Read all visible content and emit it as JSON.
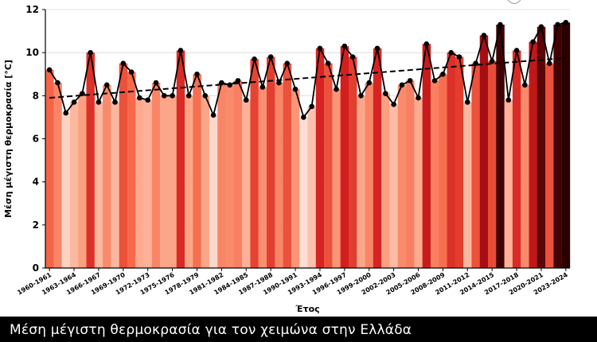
{
  "footer": {
    "title": "Μέση μέγιστη θερμοκρασία για τον χειμώνα στην Ελλάδα"
  },
  "chart_data": {
    "type": "bar",
    "title": "Μέση μέγιστη θερμοκρασία για τον χειμώνα στην Ελλάδα",
    "xlabel": "Έτος",
    "ylabel": "Μέση μέγιστη θερμοκρασία [°C]",
    "ylim": [
      0,
      12
    ],
    "yticks": [
      0,
      2,
      4,
      6,
      8,
      10,
      12
    ],
    "grid": "horizontal",
    "tick_labels": [
      "1960-1961",
      "1963-1964",
      "1966-1967",
      "1969-1970",
      "1972-1973",
      "1975-1976",
      "1978-1979",
      "1981-1982",
      "1984-1985",
      "1987-1988",
      "1990-1991",
      "1993-1994",
      "1996-1997",
      "1999-2000",
      "2002-2003",
      "2005-2006",
      "2008-2009",
      "2011-2012",
      "2014-2015",
      "2017-2018",
      "2020-2021",
      "2023-2024"
    ],
    "start_year": 1960,
    "values": [
      9.2,
      8.6,
      7.2,
      7.7,
      8.1,
      10.0,
      7.7,
      8.5,
      7.7,
      9.5,
      9.1,
      7.9,
      7.8,
      8.6,
      8.0,
      8.0,
      10.1,
      8.0,
      9.0,
      8.0,
      7.1,
      8.6,
      8.5,
      8.7,
      7.8,
      9.7,
      8.4,
      9.8,
      8.6,
      9.5,
      8.3,
      7.0,
      7.5,
      10.2,
      9.5,
      8.3,
      10.3,
      9.8,
      8.0,
      8.6,
      10.2,
      8.1,
      7.6,
      8.5,
      8.7,
      7.9,
      10.4,
      8.7,
      9.0,
      10.0,
      9.8,
      7.7,
      9.5,
      10.8,
      9.6,
      11.3,
      7.8,
      10.1,
      8.5,
      10.5,
      11.2,
      9.5,
      11.3,
      11.4
    ],
    "trend": {
      "start": 7.9,
      "end": 9.75,
      "style": "dashed",
      "color": "#000000"
    },
    "line_series": {
      "color": "#000000",
      "markers": true
    },
    "colors": {
      "bar_scale_light": "#fcd9c8",
      "bar_scale_dark": "#250000",
      "grid": "#d9d9d9",
      "footer_bg": "#000000",
      "footer_text": "#ffffff"
    }
  }
}
